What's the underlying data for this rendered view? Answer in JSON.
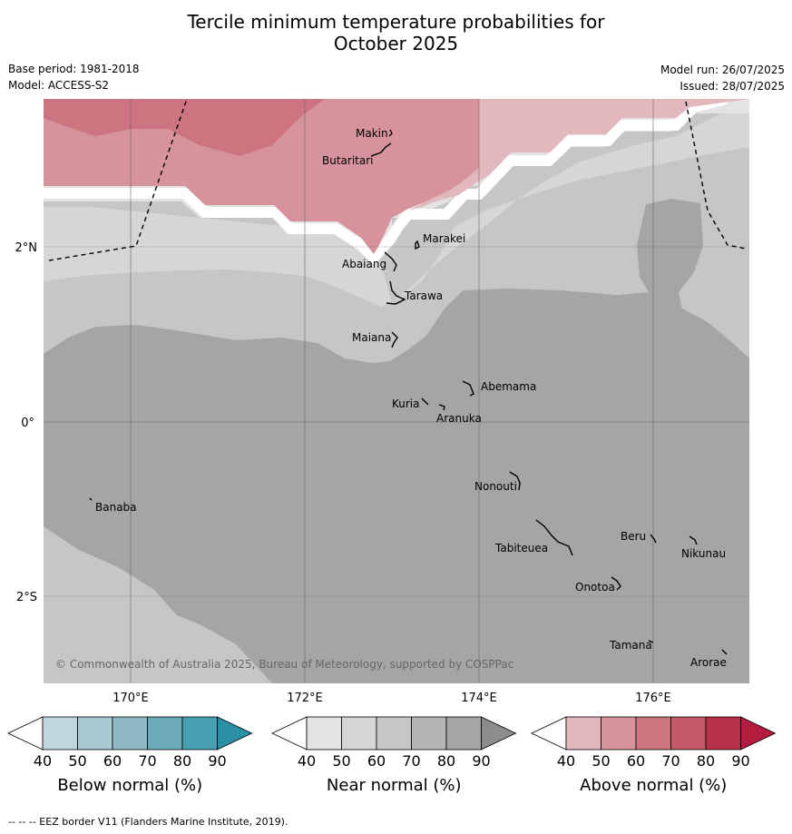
{
  "title_line1": "Tercile minimum temperature probabilities for",
  "title_line2": "October 2025",
  "meta": {
    "base_period": "Base period: 1981-2018",
    "model": "Model: ACCESS-S2",
    "model_run": "Model run: 26/07/2025",
    "issued": "Issued: 28/07/2025"
  },
  "map": {
    "lon_ticks": [
      "170°E",
      "172°E",
      "174°E",
      "176°E"
    ],
    "lat_ticks": [
      "2°N",
      "0°",
      "2°S"
    ],
    "copyright": "© Commonwealth of Australia 2025, Bureau of Meteorology, supported by COSPPac",
    "places": [
      "Makin",
      "Butaritari",
      "Marakei",
      "Abaiang",
      "Tarawa",
      "Maiana",
      "Abemama",
      "Kuria",
      "Aranuka",
      "Nonouti",
      "Banaba",
      "Tabiteuea",
      "Beru",
      "Nikunau",
      "Onotoa",
      "Tamana",
      "Arorae"
    ]
  },
  "legends": [
    {
      "name": "Below normal (%)",
      "colors": [
        "#ffffff",
        "#bfd6de",
        "#a7c9d2",
        "#8dbac5",
        "#6cacba",
        "#46a0b2",
        "#2b8fa5"
      ]
    },
    {
      "name": "Near normal (%)",
      "colors": [
        "#ffffff",
        "#e3e3e3",
        "#d6d6d6",
        "#c6c6c6",
        "#b5b5b5",
        "#a5a5a5",
        "#8c8c8c"
      ]
    },
    {
      "name": "Above normal (%)",
      "colors": [
        "#ffffff",
        "#e2b7bd",
        "#d6939b",
        "#cc7480",
        "#c45a68",
        "#b8304a",
        "#b51d3e"
      ]
    }
  ],
  "legend_ticks": [
    "40",
    "50",
    "60",
    "70",
    "80",
    "90"
  ],
  "footer": "--  --  -- EEZ border V11 (Flanders Marine Institute, 2019)."
}
